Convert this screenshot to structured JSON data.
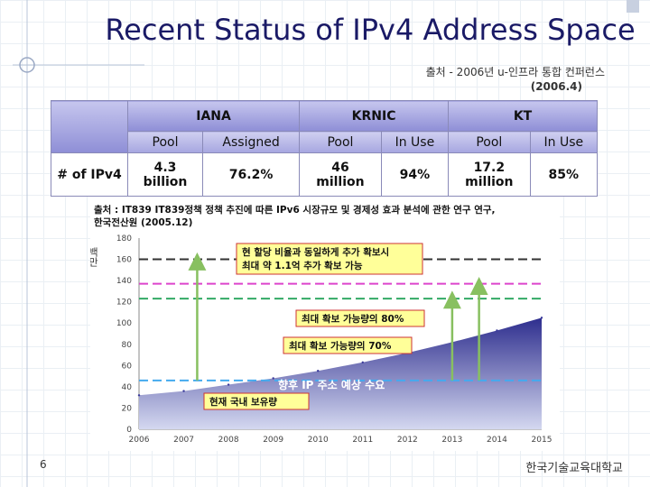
{
  "slide": {
    "title": "Recent Status of IPv4 Address Space",
    "source_line1": "출처 - 2006년 u-인프라 통합 컨퍼런스",
    "source_line2": "(2006.4)",
    "page_number": "6",
    "footer": "한국기술교육대학교"
  },
  "table": {
    "groups": [
      "IANA",
      "KRNIC",
      "KT"
    ],
    "subheaders": [
      "Pool",
      "Assigned",
      "Pool",
      "In Use",
      "Pool",
      "In Use"
    ],
    "row_label": "# of IPv4",
    "values": [
      [
        "4.3",
        "billion"
      ],
      [
        "76.2%"
      ],
      [
        "46",
        "million"
      ],
      [
        "94%"
      ],
      [
        "17.2",
        "million"
      ],
      [
        "85%"
      ]
    ]
  },
  "chart": {
    "source_line1": "출처 : IT839 IT839정책 정책 추진에 따른 IPv6 시장규모 및 경제성 효과 분석에 관한 연구 연구,",
    "source_line2": "한국전산원 (2005.12)",
    "ylabel": "백만",
    "colors": {
      "area_top": "#2e2e8e",
      "area_bottom": "#cfd4ee",
      "callout_bg": "#ffff99",
      "callout_border": "#cc3333",
      "arrow": "#88c060"
    }
  },
  "chart_data": {
    "type": "area",
    "title": "향후 IP 주소 예상 수요",
    "ylabel": "백만",
    "ylim": [
      0,
      180
    ],
    "yticks": [
      0,
      20,
      40,
      60,
      80,
      100,
      120,
      140,
      160,
      180
    ],
    "categories": [
      "2006",
      "2007",
      "2008",
      "2009",
      "2010",
      "2011",
      "2012",
      "2013",
      "2014",
      "2015"
    ],
    "series": [
      {
        "name": "향후 IP 주소 예상 수요",
        "values": [
          32,
          36,
          42,
          48,
          55,
          63,
          72,
          82,
          93,
          105
        ]
      }
    ],
    "reference_lines": [
      {
        "name": "현재 국내 보유량",
        "value": 46,
        "color": "#44aaee",
        "style": "dashed"
      },
      {
        "name": "최대 확보 가능량의 70%",
        "value": 123,
        "color": "#33aa66",
        "style": "dashed"
      },
      {
        "name": "최대 확보 가능량의 80%",
        "value": 137,
        "color": "#dd44cc",
        "style": "dashed"
      },
      {
        "name": "현 할당 비율과 동일하게 추가 확보시",
        "value": 160,
        "color": "#333333",
        "style": "dashed"
      }
    ],
    "annotations": [
      "현 할당 비율과 동일하게 추가 확보시",
      "최대 약 1.1억 추가 확보 가능",
      "최대 확보 가능량의 80%",
      "최대 확보 가능량의 70%",
      "향후 IP 주소 예상 수요",
      "현재 국내 보유량"
    ]
  }
}
